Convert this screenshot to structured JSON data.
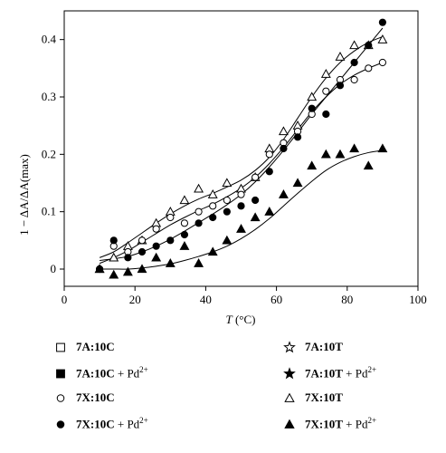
{
  "chart_data": {
    "type": "scatter",
    "xlabel_var": "T",
    "xlabel_unit": "(°C)",
    "ylabel": "1 − ΔA/ΔA(max)",
    "xlim": [
      0,
      100
    ],
    "ylim": [
      -0.03,
      0.45
    ],
    "x_ticks": [
      0,
      20,
      40,
      60,
      80,
      100
    ],
    "y_ticks": [
      0,
      0.1,
      0.2,
      0.3,
      0.4
    ],
    "grid": false,
    "legend_position": "bottom",
    "series": [
      {
        "name": "7X:10T",
        "marker": "triangle-open",
        "x": [
          10,
          14,
          18,
          22,
          26,
          30,
          34,
          38,
          42,
          46,
          50,
          54,
          58,
          62,
          66,
          70,
          74,
          78,
          82,
          86,
          90
        ],
        "y": [
          0.0,
          0.02,
          0.04,
          0.05,
          0.08,
          0.1,
          0.12,
          0.14,
          0.13,
          0.15,
          0.14,
          0.16,
          0.21,
          0.24,
          0.25,
          0.3,
          0.34,
          0.37,
          0.39,
          0.39,
          0.4
        ],
        "fit_y": [
          0.02,
          0.03,
          0.046,
          0.063,
          0.08,
          0.096,
          0.11,
          0.122,
          0.132,
          0.143,
          0.155,
          0.172,
          0.195,
          0.226,
          0.263,
          0.3,
          0.333,
          0.36,
          0.38,
          0.395,
          0.405
        ]
      },
      {
        "name": "7X:10C",
        "marker": "circle-open",
        "x": [
          10,
          14,
          18,
          22,
          26,
          30,
          34,
          38,
          42,
          46,
          50,
          54,
          58,
          62,
          66,
          70,
          74,
          78,
          82,
          86,
          90
        ],
        "y": [
          0.0,
          0.04,
          0.03,
          0.05,
          0.07,
          0.09,
          0.08,
          0.1,
          0.11,
          0.12,
          0.13,
          0.16,
          0.2,
          0.22,
          0.24,
          0.27,
          0.31,
          0.33,
          0.33,
          0.35,
          0.36
        ],
        "fit_y": [
          0.01,
          0.02,
          0.032,
          0.047,
          0.062,
          0.077,
          0.09,
          0.102,
          0.113,
          0.126,
          0.141,
          0.16,
          0.184,
          0.212,
          0.243,
          0.274,
          0.3,
          0.322,
          0.338,
          0.35,
          0.36
        ]
      },
      {
        "name": "7X:10C + Pd2+",
        "marker": "circle-filled",
        "x": [
          10,
          14,
          18,
          22,
          26,
          30,
          34,
          38,
          42,
          46,
          50,
          54,
          58,
          62,
          66,
          70,
          74,
          78,
          82,
          86,
          90
        ],
        "y": [
          0.0,
          0.05,
          0.02,
          0.03,
          0.04,
          0.05,
          0.06,
          0.08,
          0.09,
          0.1,
          0.11,
          0.12,
          0.17,
          0.21,
          0.23,
          0.28,
          0.27,
          0.32,
          0.36,
          0.39,
          0.43
        ],
        "fit_y": [
          0.015,
          0.018,
          0.022,
          0.03,
          0.04,
          0.052,
          0.066,
          0.081,
          0.096,
          0.112,
          0.13,
          0.152,
          0.178,
          0.207,
          0.238,
          0.27,
          0.3,
          0.33,
          0.36,
          0.39,
          0.42
        ]
      },
      {
        "name": "7X:10T + Pd2+",
        "marker": "triangle-filled",
        "x": [
          10,
          14,
          18,
          22,
          26,
          30,
          34,
          38,
          42,
          46,
          50,
          54,
          58,
          62,
          66,
          70,
          74,
          78,
          82,
          86,
          90
        ],
        "y": [
          0.0,
          -0.01,
          -0.005,
          0.0,
          0.02,
          0.01,
          0.04,
          0.01,
          0.03,
          0.05,
          0.07,
          0.09,
          0.1,
          0.13,
          0.15,
          0.18,
          0.2,
          0.2,
          0.21,
          0.18,
          0.21
        ],
        "fit_y": [
          0.0,
          0.0,
          0.0,
          0.002,
          0.005,
          0.009,
          0.015,
          0.022,
          0.03,
          0.04,
          0.053,
          0.069,
          0.088,
          0.11,
          0.132,
          0.153,
          0.172,
          0.186,
          0.196,
          0.203,
          0.207
        ]
      }
    ]
  },
  "legend": {
    "items": [
      {
        "marker": "square-open",
        "label": "7A:10C",
        "ion": ""
      },
      {
        "marker": "star-open",
        "label": "7A:10T",
        "ion": ""
      },
      {
        "marker": "square-filled",
        "label": "7A:10C",
        "ion": " + Pd"
      },
      {
        "marker": "star-filled",
        "label": "7A:10T",
        "ion": " + Pd"
      },
      {
        "marker": "circle-open",
        "label": "7X:10C",
        "ion": ""
      },
      {
        "marker": "triangle-open",
        "label": "7X:10T",
        "ion": ""
      },
      {
        "marker": "circle-filled",
        "label": "7X:10C",
        "ion": " + Pd"
      },
      {
        "marker": "triangle-filled",
        "label": "7X:10T",
        "ion": " + Pd"
      }
    ],
    "superscript": "2+"
  }
}
